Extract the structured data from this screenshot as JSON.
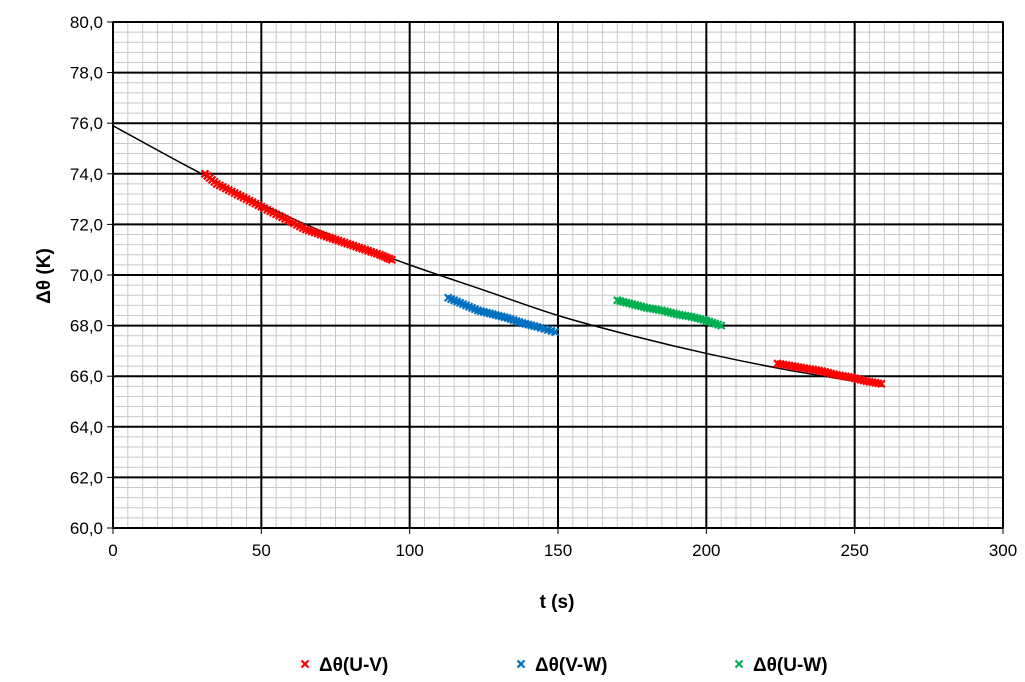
{
  "chart_data": {
    "type": "scatter",
    "xlabel": "t (s)",
    "ylabel": "Δθ (K)",
    "xlim": [
      0,
      300
    ],
    "ylim": [
      60,
      80
    ],
    "x_ticks": [
      0,
      50,
      100,
      150,
      200,
      250,
      300
    ],
    "x_tick_labels": [
      "0",
      "50",
      "100",
      "150",
      "200",
      "250",
      "300"
    ],
    "y_ticks": [
      60,
      62,
      64,
      66,
      68,
      70,
      72,
      74,
      76,
      78,
      80
    ],
    "y_tick_labels": [
      "60,0",
      "62,0",
      "64,0",
      "66,0",
      "68,0",
      "70,0",
      "72,0",
      "74,0",
      "76,0",
      "78,0",
      "80,0"
    ],
    "grid": {
      "major": true,
      "minor": true,
      "x_minor_step": 5,
      "y_minor_step": 0.4
    },
    "legend_position": "bottom",
    "series": [
      {
        "name": "Δθ(U-V)",
        "color": "#ff0000",
        "marker": "x",
        "x": [
          31,
          35,
          40,
          45,
          50,
          55,
          60,
          65,
          70,
          75,
          80,
          85,
          90,
          94
        ],
        "y": [
          74.0,
          73.6,
          73.3,
          73.0,
          72.7,
          72.4,
          72.1,
          71.8,
          71.6,
          71.4,
          71.2,
          71.0,
          70.8,
          70.6
        ]
      },
      {
        "name": "Δθ(V-W)",
        "color": "#0070c0",
        "marker": "x",
        "x": [
          113,
          118,
          123,
          128,
          133,
          138,
          143,
          149
        ],
        "y": [
          69.1,
          68.85,
          68.6,
          68.45,
          68.3,
          68.1,
          67.95,
          67.75
        ]
      },
      {
        "name": "Δθ(U-W)",
        "color": "#00b050",
        "marker": "x",
        "x": [
          170,
          175,
          180,
          185,
          190,
          195,
          200,
          205
        ],
        "y": [
          69.0,
          68.85,
          68.7,
          68.6,
          68.45,
          68.35,
          68.2,
          68.0
        ]
      },
      {
        "name": "",
        "color": "#ff0000",
        "marker": "x",
        "x": [
          224,
          229,
          234,
          239,
          244,
          249,
          254,
          259
        ],
        "y": [
          66.5,
          66.4,
          66.3,
          66.2,
          66.05,
          65.95,
          65.8,
          65.7
        ]
      }
    ],
    "trendline": {
      "color": "#000000",
      "x": [
        0,
        25,
        50,
        75,
        100,
        125,
        150,
        175,
        200,
        225,
        250,
        260
      ],
      "y": [
        75.9,
        74.3,
        72.8,
        71.5,
        70.4,
        69.4,
        68.4,
        67.6,
        66.9,
        66.3,
        65.8,
        65.6
      ]
    }
  }
}
